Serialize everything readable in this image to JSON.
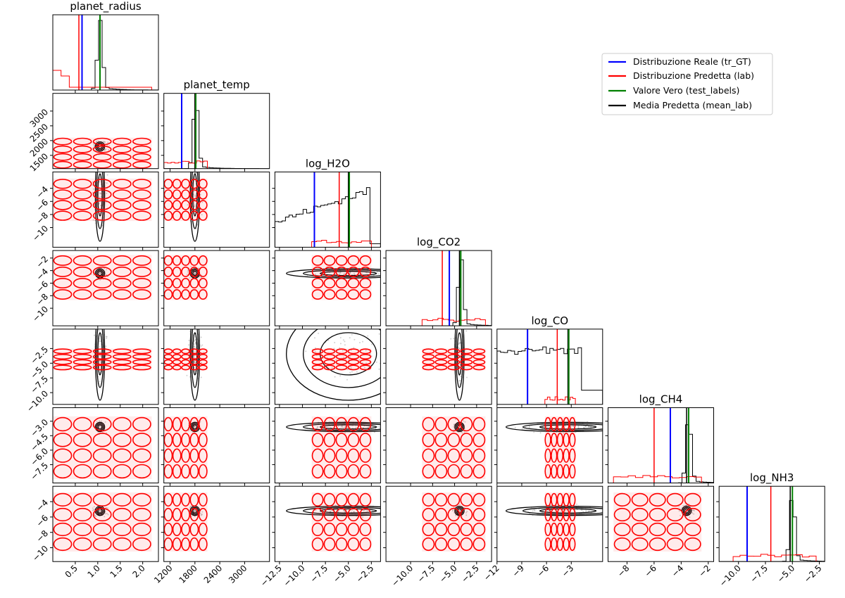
{
  "chart_data": {
    "type": "corner",
    "parameters": [
      "planet_radius",
      "planet_temp",
      "log_H2O",
      "log_CO2",
      "log_CO",
      "log_CH4",
      "log_NH3"
    ],
    "ranges": [
      [
        0.0,
        2.35
      ],
      [
        1050,
        3600
      ],
      [
        -13.0,
        -1.5
      ],
      [
        -12.8,
        -0.8
      ],
      [
        -12.0,
        0.8
      ],
      [
        -9.4,
        -1.6
      ],
      [
        -11.8,
        -2.0
      ]
    ],
    "x_ticks": [
      [
        0.5,
        1.0,
        1.5,
        2.0
      ],
      [
        1200,
        1800,
        2400,
        3000
      ],
      [
        -12.5,
        -10.0,
        -7.5,
        -5.0,
        -2.5
      ],
      [
        -10.0,
        -7.5,
        -5.0,
        -2.5
      ],
      [
        -12,
        -9,
        -6,
        -3
      ],
      [
        -8,
        -6,
        -4,
        -2
      ],
      [
        -10.0,
        -7.5,
        -5.0,
        -2.5
      ]
    ],
    "x_tick_labels": [
      [
        "0.5",
        "1.0",
        "1.5",
        "2.0"
      ],
      [
        "1200",
        "1800",
        "2400",
        "3000"
      ],
      [
        "−12.5",
        "−10.0",
        "−7.5",
        "−5.0",
        "−2.5"
      ],
      [
        "−10.0",
        "−7.5",
        "−5.0",
        "−2.5"
      ],
      [
        "−12",
        "−9",
        "−6",
        "−3"
      ],
      [
        "−8",
        "−6",
        "−4",
        "−2"
      ],
      [
        "−10.0",
        "−7.5",
        "−5.0",
        "−2.5"
      ]
    ],
    "y_ticks": [
      null,
      [
        1500,
        2000,
        2500,
        3000
      ],
      [
        -4,
        -6,
        -8,
        -10
      ],
      [
        -2,
        -4,
        -6,
        -8,
        -10
      ],
      [
        -2.5,
        -5.0,
        -7.5,
        -10.0
      ],
      [
        -3.0,
        -4.5,
        -6.0,
        -7.5
      ],
      [
        -4,
        -6,
        -8,
        -10
      ]
    ],
    "y_tick_labels": [
      null,
      [
        "1500",
        "2000",
        "2500",
        "3000"
      ],
      [
        "−4",
        "−6",
        "−8",
        "−10"
      ],
      [
        "−2",
        "−4",
        "−6",
        "−8",
        "−10"
      ],
      [
        "−2.5",
        "−5.0",
        "−7.5",
        "−10.0"
      ],
      [
        "−3.0",
        "−4.5",
        "−6.0",
        "−7.5"
      ],
      [
        "−4",
        "−6",
        "−8",
        "−10"
      ]
    ],
    "true_values": [
      1.05,
      1820,
      -4.9,
      -4.3,
      -3.3,
      -3.45,
      -5.0
    ],
    "mean_predicted": [
      1.05,
      1800,
      -5.0,
      -4.45,
      -3.4,
      -3.6,
      -5.2
    ],
    "gt_values": [
      0.65,
      1480,
      -8.7,
      -5.6,
      -8.3,
      -4.8,
      -9.2
    ],
    "lab_values": [
      0.58,
      1800,
      -6.0,
      -6.4,
      -4.7,
      -6.0,
      -7.0
    ],
    "marginal_shape": [
      "spike",
      "spike",
      "ramp",
      "spike",
      "flat",
      "spike",
      "spike"
    ],
    "lab_spread": [
      [
        0.0,
        2.2
      ],
      [
        1050,
        2100
      ],
      [
        -9.0,
        -2.5
      ],
      [
        -8.7,
        -1.5
      ],
      [
        -6.2,
        -2.5
      ],
      [
        -9.0,
        -2.5
      ],
      [
        -10.5,
        -2.8
      ]
    ],
    "legend": {
      "position": "top-right",
      "entries": [
        {
          "label": "Distribuzione Reale (tr_GT)",
          "color": "#0000ff"
        },
        {
          "label": "Distribuzione Predetta (lab)",
          "color": "#ff0000"
        },
        {
          "label": "Valore Vero (test_labels)",
          "color": "#008000"
        },
        {
          "label": "Media Predetta (mean_lab)",
          "color": "#000000"
        }
      ]
    }
  }
}
